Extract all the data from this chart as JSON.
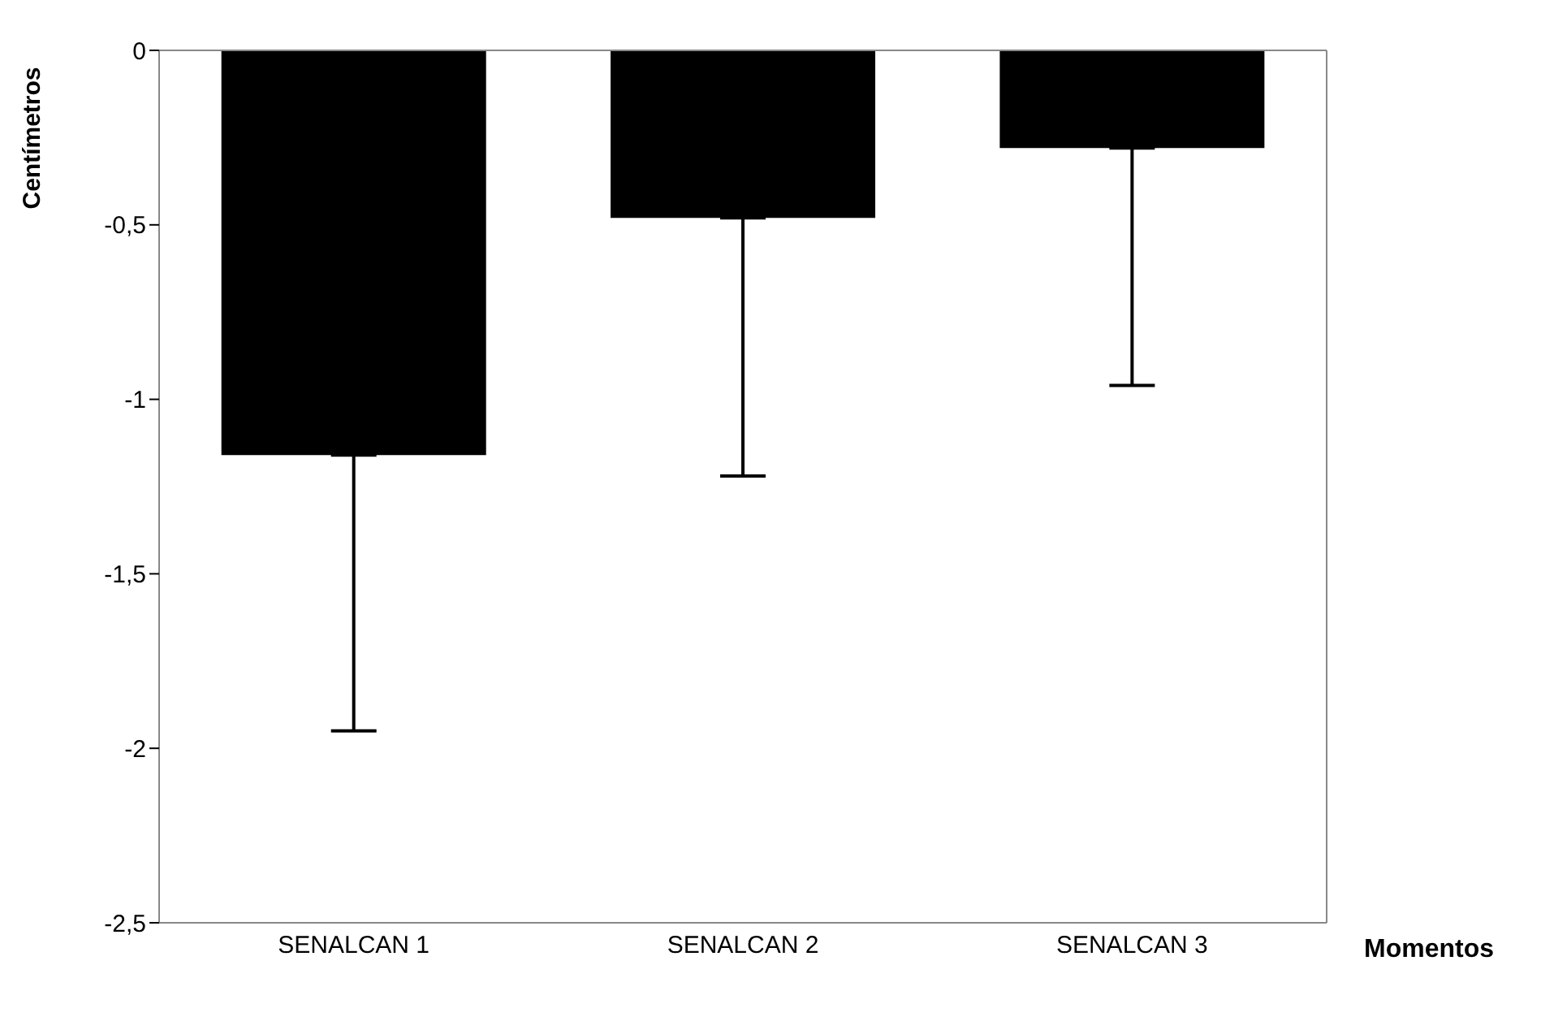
{
  "chart_data": {
    "type": "bar",
    "ylabel": "Centímetros",
    "xlabel": "Momentos",
    "categories": [
      "SENALCAN 1",
      "SENALCAN 2",
      "SENALCAN 3"
    ],
    "values": [
      -1.16,
      -0.48,
      -0.28
    ],
    "errors": [
      [
        -1.95,
        -1.16
      ],
      [
        -1.22,
        -0.48
      ],
      [
        -0.96,
        -0.28
      ]
    ],
    "color": "#000000",
    "ylim": [
      -2.5,
      0
    ],
    "yticks": [
      0,
      {
        "value": -0.5,
        "label": "-0,5"
      },
      -1,
      {
        "value": -1.5,
        "label": "-1,5"
      },
      -2,
      {
        "value": -2.5,
        "label": "-2,5"
      }
    ]
  }
}
